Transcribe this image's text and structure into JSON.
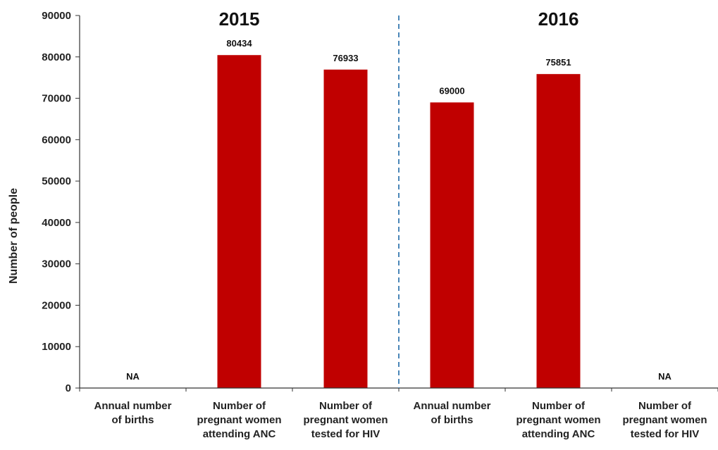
{
  "chart_data": {
    "type": "bar",
    "ylabel": "Number of people",
    "ylim": [
      0,
      90000
    ],
    "yticks": [
      "0",
      "10000",
      "20000",
      "30000",
      "40000",
      "50000",
      "60000",
      "70000",
      "80000",
      "90000"
    ],
    "groups": [
      {
        "label": "2015"
      },
      {
        "label": "2016"
      }
    ],
    "categories": [
      [
        "Annual number",
        "of births"
      ],
      [
        "Number of",
        "pregnant women",
        "attending ANC"
      ],
      [
        "Number of",
        "pregnant women",
        "tested for HIV"
      ],
      [
        "Annual number",
        "of births"
      ],
      [
        "Number of",
        "pregnant women",
        "attending ANC"
      ],
      [
        "Number of",
        "pregnant women",
        "tested for HIV"
      ]
    ],
    "values": [
      null,
      80434,
      76933,
      69000,
      75851,
      null
    ],
    "value_labels": [
      "NA",
      "80434",
      "76933",
      "69000",
      "75851",
      "NA"
    ],
    "bar_color": "#c00000",
    "divider_color": "#4a86b8",
    "grid": false
  }
}
